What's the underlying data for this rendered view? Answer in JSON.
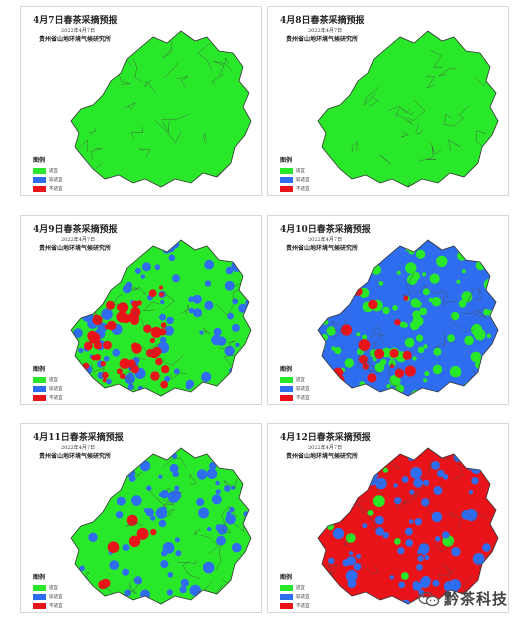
{
  "institute": "贵州省山地环境气候研究所",
  "issue_date": "2022年4月7日",
  "legend": {
    "title": "图例",
    "items": [
      {
        "label": "适宜",
        "color": "#29e829"
      },
      {
        "label": "较适宜",
        "color": "#2f6df0"
      },
      {
        "label": "不适宜",
        "color": "#e8141a"
      }
    ]
  },
  "panels": [
    {
      "title": "4月7日春茶采摘预报",
      "green": 1.0,
      "blue": 0.0,
      "red": 0.0
    },
    {
      "title": "4月8日春茶采摘预报",
      "green": 1.0,
      "blue": 0.0,
      "red": 0.0
    },
    {
      "title": "4月9日春茶采摘预报",
      "green": 0.4,
      "blue": 0.4,
      "red": 0.2
    },
    {
      "title": "4月10日春茶采摘预报",
      "green": 0.45,
      "blue": 0.48,
      "red": 0.07
    },
    {
      "title": "4月11日春茶采摘预报",
      "green": 0.6,
      "blue": 0.37,
      "red": 0.03
    },
    {
      "title": "4月12日春茶采摘预报",
      "green": 0.03,
      "blue": 0.32,
      "red": 0.65
    }
  ],
  "watermark": {
    "text": "黔茶科技",
    "icon": "wechat-icon"
  }
}
